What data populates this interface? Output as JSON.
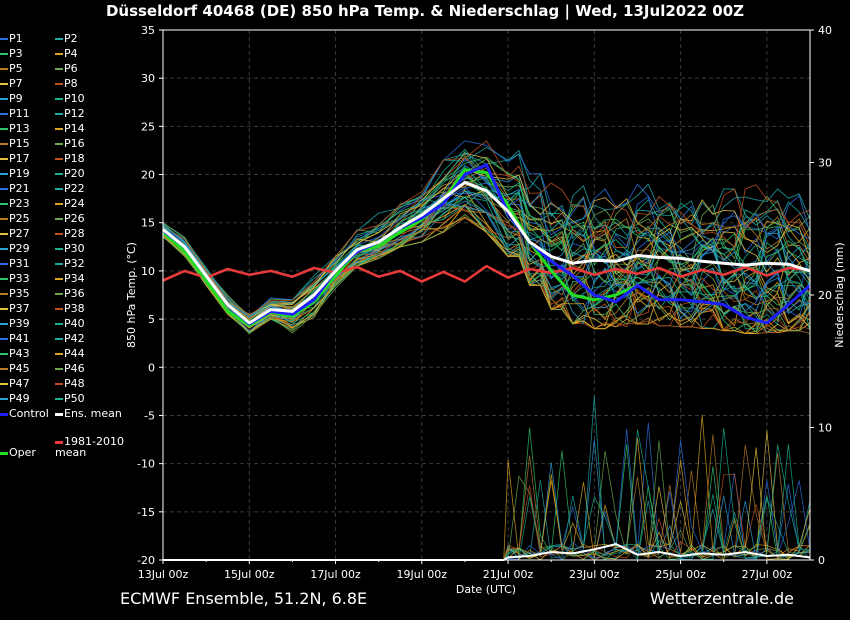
{
  "header": {
    "title": "Düsseldorf 40468 (DE)  850 hPa Temp. & Niederschlag | Wed, 13Jul2022 00Z"
  },
  "footer": {
    "model": "ECMWF Ensemble, 51.2N, 6.8E",
    "site": "Wetterzentrale.de"
  },
  "colors": {
    "background": "#000000",
    "control": "#1e1eff",
    "ens_mean": "#ffffff",
    "oper": "#22dd22",
    "climate": "#e83a3a",
    "member_palette": [
      "#2a6fe0",
      "#1fa6a6",
      "#2ec46a",
      "#d9a520",
      "#b87d2a",
      "#6aa84f",
      "#e0c040",
      "#c05020",
      "#2a9fd6",
      "#17b28c"
    ]
  },
  "legend": {
    "members": [
      "P1",
      "P2",
      "P3",
      "P4",
      "P5",
      "P6",
      "P7",
      "P8",
      "P9",
      "P10",
      "P11",
      "P12",
      "P13",
      "P14",
      "P15",
      "P16",
      "P17",
      "P18",
      "P19",
      "P20",
      "P21",
      "P22",
      "P23",
      "P24",
      "P25",
      "P26",
      "P27",
      "P28",
      "P29",
      "P30",
      "P31",
      "P32",
      "P33",
      "P34",
      "P35",
      "P36",
      "P37",
      "P38",
      "P39",
      "P40",
      "P41",
      "P42",
      "P43",
      "P44",
      "P45",
      "P46",
      "P47",
      "P48",
      "P49",
      "P50"
    ],
    "control": "Control",
    "ens_mean": "Ens. mean",
    "oper": "Oper",
    "climate": "1981-2010 mean"
  },
  "chart_data": {
    "type": "line",
    "xlabel": "Date (UTC)",
    "ylabel": "850 hPa Temp. (°C)",
    "y2label": "Niederschlag (mm)",
    "x_range_days": [
      0,
      15
    ],
    "ylim": [
      -20,
      35
    ],
    "y2lim": [
      0,
      40
    ],
    "xticks": [
      "13Jul 00z",
      "15Jul 00z",
      "17Jul 00z",
      "19Jul 00z",
      "21Jul 00z",
      "23Jul 00z",
      "25Jul 00z",
      "27Jul 00z"
    ],
    "xtick_days": [
      0,
      2,
      4,
      6,
      8,
      10,
      12,
      14
    ],
    "yticks": [
      -20,
      -15,
      -10,
      -5,
      0,
      5,
      10,
      15,
      20,
      25,
      30,
      35
    ],
    "y2ticks": [
      0,
      10,
      20,
      30,
      40
    ],
    "grid": true,
    "series": [
      {
        "name": "Control",
        "role": "control",
        "x": [
          0,
          0.5,
          1,
          1.5,
          2,
          2.5,
          3,
          3.5,
          4,
          4.5,
          5,
          5.5,
          6,
          6.5,
          7,
          7.5,
          8,
          8.5,
          9,
          9.5,
          10,
          10.5,
          11,
          11.5,
          12,
          12.5,
          13,
          13.5,
          14,
          14.5,
          15
        ],
        "y": [
          14.2,
          12.5,
          9.5,
          6.5,
          4.5,
          5.8,
          5.5,
          7,
          10,
          12,
          13,
          14.5,
          15.5,
          17,
          20,
          21,
          16,
          13,
          11,
          9.5,
          7.5,
          6.8,
          8.5,
          7,
          7,
          6.8,
          6.5,
          5.2,
          4.6,
          6.5,
          8.5
        ]
      },
      {
        "name": "Ens. mean",
        "role": "ens_mean",
        "x": [
          0,
          0.5,
          1,
          1.5,
          2,
          2.5,
          3,
          3.5,
          4,
          4.5,
          5,
          5.5,
          6,
          6.5,
          7,
          7.5,
          8,
          8.5,
          9,
          9.5,
          10,
          10.5,
          11,
          11.5,
          12,
          12.5,
          13,
          13.5,
          14,
          14.5,
          15
        ],
        "y": [
          14.3,
          12.5,
          9.5,
          6.5,
          4.6,
          6,
          5.8,
          7.5,
          10,
          12.2,
          13,
          14.5,
          15.8,
          17.5,
          19.2,
          18.3,
          16.2,
          13,
          11.5,
          10.8,
          11.1,
          11,
          11.6,
          11.4,
          11.3,
          11,
          10.8,
          10.6,
          10.8,
          10.7,
          10
        ]
      },
      {
        "name": "Oper",
        "role": "oper",
        "x": [
          0,
          0.5,
          1,
          1.5,
          2,
          2.5,
          3,
          3.5,
          4,
          4.5,
          5,
          5.5,
          6,
          6.5,
          7,
          7.5,
          8,
          8.5,
          9,
          9.5,
          10,
          10.5,
          11
        ],
        "y": [
          14,
          12,
          9,
          5.8,
          4.3,
          5.7,
          5.3,
          6.8,
          9.5,
          12,
          12.6,
          14,
          15.3,
          17.3,
          20.5,
          20.2,
          16.8,
          13,
          10,
          7.5,
          7,
          7.5,
          8.5
        ]
      },
      {
        "name": "1981-2010 mean",
        "role": "climate",
        "x": [
          0,
          0.5,
          1,
          1.5,
          2,
          2.5,
          3,
          3.5,
          4,
          4.5,
          5,
          5.5,
          6,
          6.5,
          7,
          7.5,
          8,
          8.5,
          9,
          9.5,
          10,
          10.5,
          11,
          11.5,
          12,
          12.5,
          13,
          13.5,
          14,
          14.5,
          15
        ],
        "y": [
          9,
          10,
          9.3,
          10.2,
          9.6,
          10,
          9.4,
          10.3,
          9.8,
          10.4,
          9.4,
          10,
          8.9,
          9.9,
          8.9,
          10.5,
          9.3,
          10.2,
          9.8,
          10.3,
          9.6,
          10.2,
          9.7,
          10.3,
          9.4,
          10.1,
          9.6,
          10.4,
          9.5,
          10.3,
          10.1
        ]
      }
    ],
    "ensemble_envelope": {
      "x": [
        0,
        0.5,
        1,
        1.5,
        2,
        2.5,
        3,
        3.5,
        4,
        4.5,
        5,
        5.5,
        6,
        6.5,
        7,
        7.5,
        8,
        8.5,
        9,
        9.5,
        10,
        10.5,
        11,
        11.5,
        12,
        12.5,
        13,
        13.5,
        14,
        14.5,
        15
      ],
      "lower": [
        13.5,
        11.5,
        8.5,
        5.5,
        3.3,
        5,
        3,
        5,
        8.2,
        10.5,
        11.3,
        12.5,
        13,
        14,
        15.5,
        14,
        11.5,
        8.5,
        6,
        4.5,
        4,
        4.2,
        4.5,
        4.3,
        4.2,
        4,
        3.8,
        3.5,
        3.6,
        3.8,
        3.5
      ],
      "upper": [
        15,
        13.5,
        10.5,
        7.5,
        5.5,
        7.2,
        7,
        9.5,
        11.5,
        14.5,
        16,
        17.5,
        19,
        21.5,
        23.5,
        23.5,
        22.5,
        21,
        20.3,
        19.5,
        18.5,
        18.2,
        19,
        18.5,
        18,
        17.8,
        18.5,
        19.5,
        18.5,
        18,
        16.5
      ]
    },
    "precipitation_mm": {
      "x": [
        8,
        8.5,
        9,
        9.5,
        10,
        10.5,
        11,
        11.5,
        12,
        12.5,
        13,
        13.5,
        14,
        14.5,
        15
      ],
      "ens_mean": [
        0.2,
        0.3,
        0.6,
        0.5,
        0.8,
        1.2,
        0.4,
        0.6,
        0.3,
        0.5,
        0.4,
        0.6,
        0.3,
        0.4,
        0.2
      ],
      "member_max": [
        10.5,
        10,
        10,
        11.5,
        12.5,
        12,
        11,
        10.5,
        10,
        11,
        10.5,
        9.5,
        10,
        10,
        8.5
      ]
    }
  }
}
